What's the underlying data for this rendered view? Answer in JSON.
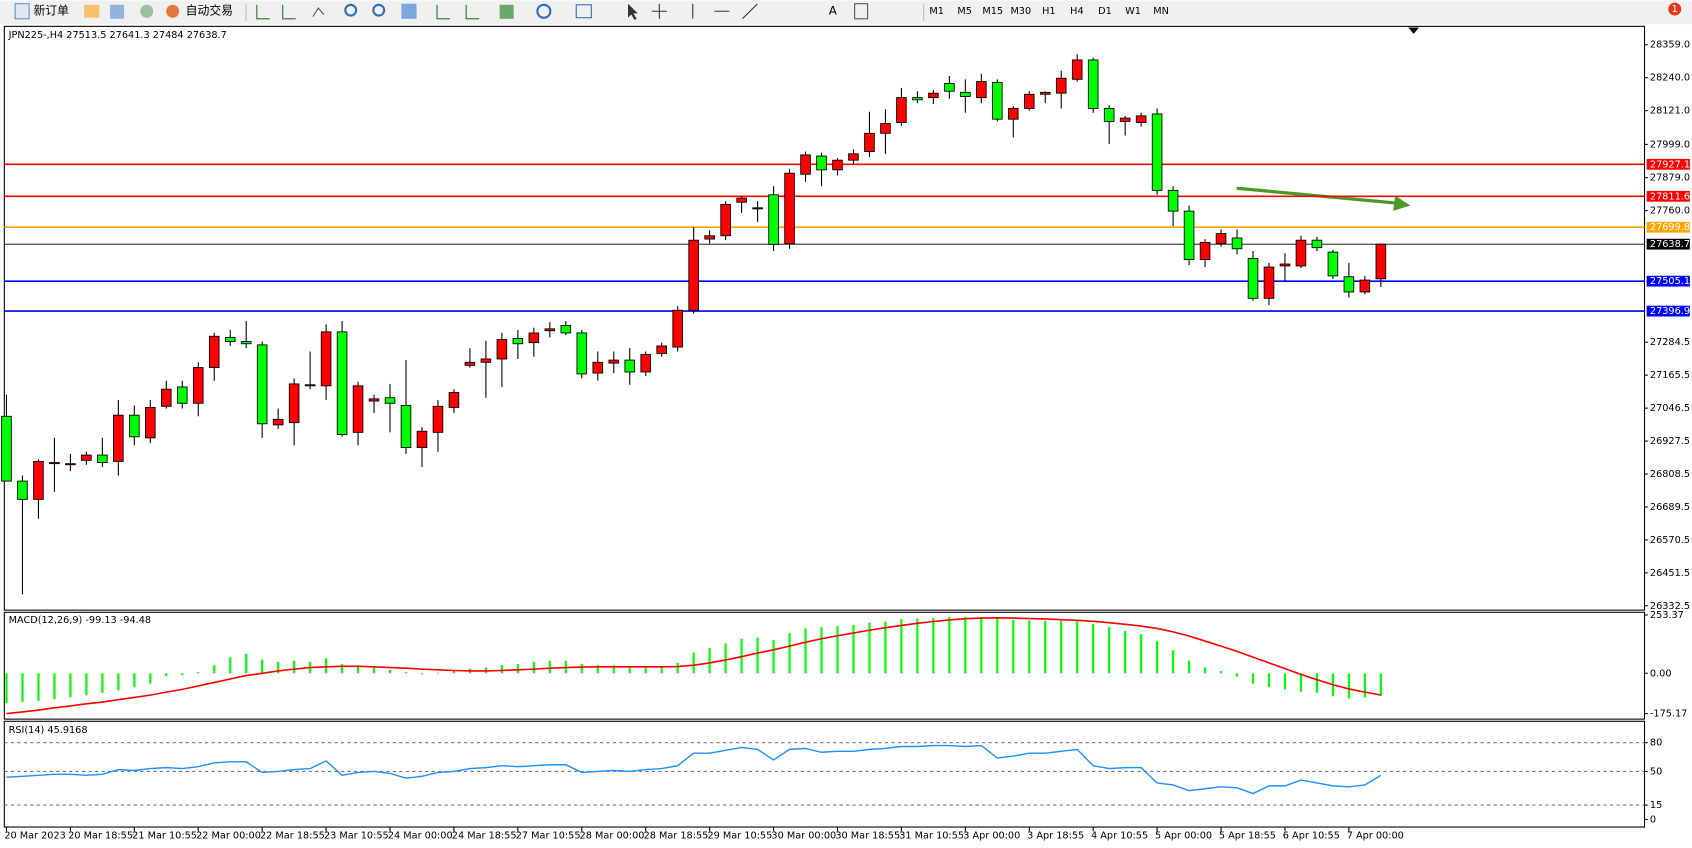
{
  "toolbar": {
    "new_order": "新订单",
    "auto_trading": "自动交易",
    "text_tool": "A",
    "periods": [
      "M1",
      "M5",
      "M15",
      "M30",
      "H1",
      "H4",
      "D1",
      "W1",
      "MN"
    ],
    "badge": "1"
  },
  "chart_data": [
    {
      "type": "candlestick",
      "symbol": "JPN225-,H4",
      "categories": [
        "20 Mar 2023",
        null,
        null,
        null,
        "20 Mar 18:55",
        null,
        null,
        null,
        "21 Mar 10:55",
        null,
        null,
        null,
        "22 Mar 00:00",
        null,
        null,
        null,
        "22 Mar 18:55",
        null,
        null,
        null,
        "23 Mar 10:55",
        null,
        null,
        null,
        "24 Mar 00:00",
        null,
        null,
        null,
        "24 Mar 18:55",
        null,
        null,
        null,
        "27 Mar 10:55",
        null,
        null,
        null,
        "28 Mar 00:00",
        null,
        null,
        null,
        "28 Mar 18:55",
        null,
        null,
        null,
        "29 Mar 10:55",
        null,
        null,
        null,
        "30 Mar 00:00",
        null,
        null,
        null,
        "30 Mar 18:55",
        null,
        null,
        null,
        "31 Mar 10:55",
        null,
        null,
        null,
        "3 Apr 00:00",
        null,
        null,
        null,
        "3 Apr 18:55",
        null,
        null,
        null,
        "4 Apr 10:55",
        null,
        null,
        null,
        "5 Apr 00:00",
        null,
        null,
        null,
        "5 Apr 18:55",
        null,
        null,
        null,
        "6 Apr 10:55",
        null,
        null,
        null,
        "7 Apr 00:00",
        null,
        null
      ],
      "open": [
        27017,
        26783,
        26717,
        26846,
        26842,
        26858,
        26877,
        26854,
        27021,
        26939,
        27053,
        27123,
        27064,
        27193,
        27302,
        27287,
        27275,
        26986,
        26994,
        27127,
        27127,
        27322,
        26959,
        27072,
        27084,
        27056,
        26904,
        26959,
        27049,
        27201,
        27212,
        27224,
        27298,
        27283,
        27326,
        27345,
        27318,
        27173,
        27209,
        27220,
        27177,
        27244,
        27267,
        27400,
        27657,
        27669,
        27790,
        27766,
        27817,
        27641,
        27891,
        27957,
        27907,
        27942,
        27973,
        28039,
        28078,
        28168,
        28168,
        28219,
        28187,
        28168,
        28223,
        28090,
        28129,
        28180,
        28184,
        28234,
        28304,
        28129,
        28082,
        28078,
        28109,
        27833,
        27758,
        27583,
        27641,
        27661,
        27587,
        27443,
        27560,
        27560,
        27653,
        27610,
        27521,
        27466,
        27513.5
      ],
      "high": [
        27095,
        26803,
        26861,
        26939,
        26881,
        26889,
        26939,
        27076,
        27056,
        27076,
        27146,
        27146,
        27212,
        27318,
        27329,
        27361,
        27287,
        27045,
        27154,
        27251,
        27349,
        27361,
        27142,
        27095,
        27134,
        27220,
        26978,
        27076,
        27115,
        27263,
        27290,
        27318,
        27329,
        27337,
        27357,
        27361,
        27329,
        27251,
        27251,
        27263,
        27251,
        27283,
        27415,
        27700,
        27688,
        27794,
        27813,
        27794,
        27848,
        27911,
        27973,
        27969,
        27950,
        27981,
        28117,
        28125,
        28203,
        28191,
        28195,
        28246,
        28234,
        28254,
        28234,
        28137,
        28191,
        28191,
        28265,
        28324,
        28312,
        28141,
        28102,
        28113,
        28129,
        27848,
        27778,
        27657,
        27692,
        27692,
        27614,
        27571,
        27606,
        27669,
        27665,
        27618,
        27571,
        27524,
        27641.3
      ],
      "low": [
        26783,
        26374,
        26647,
        26744,
        26819,
        26842,
        26834,
        26803,
        26912,
        26920,
        27045,
        27045,
        27017,
        27146,
        27271,
        27263,
        26939,
        26971,
        26912,
        27115,
        27076,
        26943,
        26912,
        27029,
        26959,
        26881,
        26834,
        26889,
        27029,
        27193,
        27084,
        27123,
        27224,
        27232,
        27302,
        27310,
        27154,
        27146,
        27173,
        27131,
        27162,
        27232,
        27251,
        27388,
        27641,
        27653,
        27751,
        27719,
        27614,
        27622,
        27864,
        27848,
        27887,
        27926,
        27953,
        27965,
        28066,
        28148,
        28145,
        28164,
        28113,
        28148,
        28082,
        28024,
        28121,
        28148,
        28129,
        28226,
        28113,
        28000,
        28031,
        28063,
        27817,
        27704,
        27563,
        27556,
        27630,
        27602,
        27435,
        27419,
        27505,
        27552,
        27614,
        27513,
        27446,
        27458,
        27484.0
      ],
      "close": [
        26783,
        26717,
        26854,
        26850,
        26846,
        26877,
        26850,
        27021,
        26943,
        27049,
        27115,
        27064,
        27193,
        27306,
        27287,
        27279,
        26990,
        27006,
        27134,
        27131,
        27322,
        26951,
        27127,
        27080,
        27064,
        26904,
        26963,
        27053,
        27103,
        27212,
        27224,
        27294,
        27279,
        27318,
        27333,
        27318,
        27170,
        27212,
        27220,
        27177,
        27240,
        27271,
        27400,
        27653,
        27669,
        27782,
        27805,
        27770,
        27638,
        27895,
        27961,
        27907,
        27942,
        27965,
        28039,
        28074,
        28168,
        28160,
        28184,
        28191,
        28172,
        28226,
        28090,
        28129,
        28180,
        28187,
        28238,
        28304,
        28129,
        28082,
        28094,
        28102,
        27833,
        27758,
        27583,
        27645,
        27677,
        27622,
        27443,
        27556,
        27567,
        27653,
        27626,
        27524,
        27466,
        27509,
        27638.7
      ],
      "up_color": "#ff0000",
      "down_color": "#00ff00",
      "ylim": [
        26320.8,
        28421.4
      ],
      "yticks": [
        {
          "value": 28359,
          "label": "28359.0"
        },
        {
          "value": 28240,
          "label": "28240.0"
        },
        {
          "value": 28121,
          "label": "28121.0"
        },
        {
          "value": 27999,
          "label": "27999.0"
        },
        {
          "value": 27879,
          "label": "27879.0"
        },
        {
          "value": 27760,
          "label": "27760.0"
        },
        27284.5,
        27165.5,
        27046.5,
        26927.5,
        26808.5,
        26689.5,
        26570.5,
        26451.5,
        26332.5
      ],
      "levels": [
        {
          "value": 27927.1,
          "color": "#ff0000"
        },
        {
          "value": 27811.6,
          "color": "#ff0000"
        },
        {
          "value": 27699.8,
          "color": "#ffa500"
        },
        {
          "value": 27505.1,
          "color": "#0000ff"
        },
        {
          "value": 27396.9,
          "color": "#0000ff"
        }
      ]
    },
    {
      "type": "macd",
      "title": "MACD(12,26,9)",
      "histogram": [
        -130,
        -125,
        -120,
        -112,
        -104,
        -95,
        -85,
        -75,
        -60,
        -45,
        -12,
        -8,
        5,
        35,
        70,
        85,
        60,
        50,
        55,
        50,
        65,
        40,
        35,
        25,
        15,
        5,
        -5,
        3,
        10,
        20,
        25,
        35,
        40,
        50,
        55,
        55,
        40,
        35,
        35,
        30,
        30,
        30,
        45,
        90,
        110,
        130,
        150,
        155,
        145,
        175,
        195,
        200,
        205,
        210,
        220,
        225,
        235,
        238,
        240,
        245,
        245,
        245,
        238,
        232,
        230,
        228,
        228,
        230,
        215,
        200,
        185,
        170,
        140,
        100,
        55,
        25,
        10,
        -15,
        -45,
        -60,
        -70,
        -80,
        -85,
        -100,
        -110,
        -105,
        -99.13
      ],
      "signal": [
        -175,
        -168,
        -160,
        -150,
        -142,
        -133,
        -125,
        -115,
        -105,
        -95,
        -82,
        -70,
        -55,
        -40,
        -25,
        -10,
        0,
        10,
        18,
        25,
        28,
        30,
        30,
        28,
        25,
        22,
        18,
        15,
        12,
        10,
        10,
        12,
        15,
        18,
        22,
        25,
        27,
        28,
        28,
        28,
        28,
        28,
        29,
        35,
        45,
        58,
        72,
        88,
        102,
        118,
        135,
        150,
        163,
        175,
        187,
        198,
        208,
        217,
        225,
        232,
        237,
        240,
        241,
        240,
        238,
        236,
        233,
        230,
        226,
        220,
        213,
        205,
        195,
        180,
        162,
        140,
        118,
        95,
        70,
        45,
        20,
        -5,
        -28,
        -50,
        -68,
        -82,
        -94.48
      ],
      "histogram_color": "#00ff00",
      "signal_color": "#ff0000",
      "ylim": [
        -190,
        265
      ],
      "yticks": [
        253.37,
        {
          "value": 0,
          "label": "0.00"
        },
        -175.17
      ]
    },
    {
      "type": "line",
      "title": "RSI(14)",
      "values": [
        44,
        45,
        46,
        47,
        47,
        46,
        47,
        52,
        51,
        53,
        54,
        53,
        55,
        59,
        60,
        60,
        49,
        50,
        52,
        53,
        61,
        46,
        49,
        50,
        48,
        43,
        45,
        49,
        50,
        53,
        54,
        56,
        55,
        56,
        57,
        57,
        49,
        50,
        51,
        50,
        52,
        53,
        56,
        69,
        69,
        72,
        75,
        73,
        62,
        73,
        74,
        70,
        71,
        71,
        73,
        74,
        76,
        76,
        77,
        77,
        76,
        77,
        64,
        66,
        69,
        69,
        71,
        73,
        56,
        53,
        54,
        54,
        38,
        36,
        30,
        32,
        34,
        33,
        27,
        35,
        35,
        41,
        38,
        35,
        34,
        36,
        45.9168
      ],
      "color": "#1e90ff",
      "ylim": [
        0,
        100
      ],
      "yticks": [
        80,
        50,
        15,
        0
      ],
      "grid": true
    }
  ]
}
